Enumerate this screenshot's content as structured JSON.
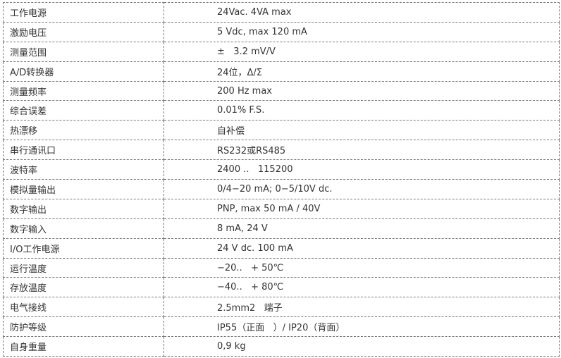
{
  "specs": [
    {
      "label": "工作电源",
      "value": "24Vac. 4VA max"
    },
    {
      "label": "激励电压",
      "value": "5 Vdc, max 120 mA"
    },
    {
      "label": "测量范围",
      "value": "±   3.2 mV/V"
    },
    {
      "label": "A/D转换器",
      "value": "24位，Δ/Σ"
    },
    {
      "label": "测量频率",
      "value": "200 Hz max"
    },
    {
      "label": "综合误差",
      "value": "0.01% F.S."
    },
    {
      "label": "热漂移",
      "value": "自补偿"
    },
    {
      "label": "串行通讯口",
      "value": "RS232或RS485"
    },
    {
      "label": "波特率",
      "value": "2400 ..   115200"
    },
    {
      "label": "模拟量输出",
      "value": "0/4−20 mA; 0−5/10V dc."
    },
    {
      "label": "数字输出",
      "value": "PNP, max 50 mA / 40V"
    },
    {
      "label": "数字输入",
      "value": "8 mA, 24 V"
    },
    {
      "label": "I/O工作电源",
      "value": "24 V dc. 100 mA"
    },
    {
      "label": "运行温度",
      "value": "−20..   + 50℃"
    },
    {
      "label": "存放温度",
      "value": "−40..   + 80℃"
    },
    {
      "label": "电气接线",
      "value": "2.5mm2   端子"
    },
    {
      "label": "防护等级",
      "value": "IP55（正面   ）/ IP20（背面）"
    },
    {
      "label": "自身重量",
      "value": "0,9 kg"
    }
  ]
}
